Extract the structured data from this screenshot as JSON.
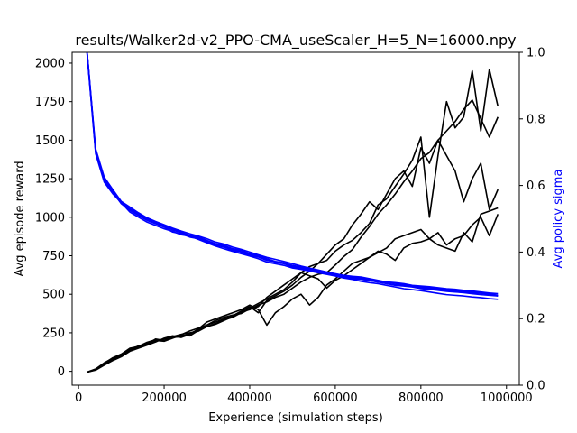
{
  "chart_data": {
    "type": "line",
    "title": "results/Walker2d-v2_PPO-CMA_useScaler_H=5_N=16000.npy",
    "xlabel": "Experience (simulation steps)",
    "ylabel": "Avg episode reward",
    "ylabel_right": "Avg policy sigma",
    "xlim": [
      -15000,
      1030000
    ],
    "ylim": [
      -90,
      2070
    ],
    "ylim_right": [
      0,
      1.0
    ],
    "xticks": [
      0,
      200000,
      400000,
      600000,
      800000,
      1000000
    ],
    "yticks": [
      0,
      250,
      500,
      750,
      1000,
      1250,
      1500,
      1750,
      2000
    ],
    "yticks_right": [
      0.0,
      0.2,
      0.4,
      0.6,
      0.8,
      1.0
    ],
    "x": [
      20000,
      40000,
      60000,
      80000,
      100000,
      120000,
      140000,
      160000,
      180000,
      200000,
      220000,
      240000,
      260000,
      280000,
      300000,
      320000,
      340000,
      360000,
      380000,
      400000,
      420000,
      440000,
      460000,
      480000,
      500000,
      520000,
      540000,
      560000,
      580000,
      600000,
      620000,
      640000,
      660000,
      680000,
      700000,
      720000,
      740000,
      760000,
      780000,
      800000,
      820000,
      840000,
      860000,
      880000,
      900000,
      920000,
      940000,
      960000,
      980000
    ],
    "reward_color": "#000000",
    "sigma_color": "#0000ff",
    "series": [
      {
        "axis": "left",
        "values": [
          -5,
          15,
          55,
          85,
          110,
          150,
          160,
          185,
          200,
          195,
          215,
          235,
          230,
          265,
          290,
          305,
          330,
          355,
          385,
          400,
          430,
          450,
          480,
          500,
          540,
          580,
          610,
          630,
          640,
          690,
          745,
          790,
          870,
          940,
          1020,
          1080,
          1150,
          1230,
          1300,
          1380,
          1420,
          1500,
          1560,
          1620,
          1700,
          1760,
          1640,
          1520,
          1650
        ]
      },
      {
        "axis": "left",
        "values": [
          -5,
          10,
          45,
          80,
          100,
          135,
          155,
          180,
          195,
          210,
          220,
          225,
          245,
          270,
          300,
          320,
          340,
          360,
          390,
          420,
          380,
          460,
          490,
          520,
          560,
          610,
          650,
          700,
          760,
          820,
          860,
          950,
          1020,
          1100,
          1050,
          1150,
          1250,
          1300,
          1200,
          1450,
          1350,
          1500,
          1400,
          1300,
          1100,
          1250,
          1350,
          1050,
          1180
        ]
      },
      {
        "axis": "left",
        "values": [
          -5,
          12,
          50,
          75,
          105,
          140,
          165,
          175,
          210,
          200,
          225,
          240,
          250,
          260,
          290,
          310,
          335,
          350,
          380,
          410,
          440,
          470,
          500,
          530,
          580,
          640,
          680,
          700,
          720,
          780,
          820,
          850,
          900,
          960,
          1080,
          1120,
          1200,
          1280,
          1370,
          1520,
          1000,
          1400,
          1750,
          1580,
          1650,
          1950,
          1560,
          1960,
          1720
        ]
      },
      {
        "axis": "left",
        "values": [
          -5,
          8,
          40,
          70,
          95,
          130,
          150,
          170,
          190,
          215,
          230,
          220,
          240,
          275,
          320,
          340,
          360,
          380,
          400,
          430,
          400,
          300,
          380,
          420,
          470,
          500,
          430,
          480,
          560,
          600,
          650,
          700,
          720,
          740,
          780,
          760,
          720,
          800,
          830,
          840,
          860,
          900,
          820,
          860,
          880,
          950,
          1000,
          880,
          1020
        ]
      },
      {
        "axis": "left",
        "values": [
          -5,
          14,
          52,
          88,
          112,
          148,
          162,
          188,
          205,
          198,
          222,
          238,
          262,
          280,
          300,
          330,
          350,
          365,
          375,
          405,
          420,
          480,
          520,
          560,
          600,
          640,
          620,
          600,
          540,
          590,
          620,
          660,
          700,
          740,
          770,
          800,
          860,
          880,
          900,
          920,
          860,
          820,
          800,
          780,
          900,
          840,
          1020,
          1040,
          1060
        ]
      },
      {
        "axis": "right",
        "values": [
          1.0,
          0.7,
          0.615,
          0.58,
          0.545,
          0.525,
          0.51,
          0.495,
          0.485,
          0.475,
          0.46,
          0.455,
          0.445,
          0.44,
          0.43,
          0.42,
          0.415,
          0.405,
          0.4,
          0.39,
          0.385,
          0.375,
          0.37,
          0.365,
          0.355,
          0.35,
          0.345,
          0.34,
          0.335,
          0.33,
          0.325,
          0.32,
          0.318,
          0.315,
          0.31,
          0.305,
          0.3,
          0.298,
          0.295,
          0.29,
          0.288,
          0.285,
          0.282,
          0.28,
          0.278,
          0.275,
          0.272,
          0.27,
          0.268
        ]
      },
      {
        "axis": "right",
        "values": [
          1.0,
          0.705,
          0.62,
          0.585,
          0.55,
          0.53,
          0.515,
          0.5,
          0.49,
          0.48,
          0.47,
          0.46,
          0.45,
          0.445,
          0.435,
          0.425,
          0.42,
          0.41,
          0.405,
          0.395,
          0.39,
          0.38,
          0.372,
          0.368,
          0.36,
          0.355,
          0.35,
          0.345,
          0.34,
          0.335,
          0.33,
          0.327,
          0.325,
          0.32,
          0.315,
          0.31,
          0.308,
          0.305,
          0.3,
          0.298,
          0.296,
          0.293,
          0.29,
          0.288,
          0.285,
          0.283,
          0.28,
          0.277,
          0.275
        ]
      },
      {
        "axis": "right",
        "values": [
          0.995,
          0.695,
          0.61,
          0.575,
          0.548,
          0.52,
          0.505,
          0.49,
          0.48,
          0.47,
          0.462,
          0.452,
          0.448,
          0.438,
          0.428,
          0.418,
          0.41,
          0.402,
          0.395,
          0.388,
          0.38,
          0.37,
          0.365,
          0.36,
          0.352,
          0.348,
          0.343,
          0.338,
          0.333,
          0.328,
          0.322,
          0.318,
          0.312,
          0.308,
          0.305,
          0.3,
          0.295,
          0.29,
          0.287,
          0.284,
          0.28,
          0.276,
          0.272,
          0.27,
          0.268,
          0.265,
          0.263,
          0.26,
          0.258
        ]
      },
      {
        "axis": "right",
        "values": [
          1.0,
          0.71,
          0.625,
          0.588,
          0.552,
          0.535,
          0.518,
          0.503,
          0.492,
          0.482,
          0.472,
          0.463,
          0.455,
          0.448,
          0.44,
          0.43,
          0.424,
          0.415,
          0.408,
          0.4,
          0.392,
          0.384,
          0.378,
          0.372,
          0.365,
          0.358,
          0.352,
          0.346,
          0.34,
          0.334,
          0.33,
          0.326,
          0.322,
          0.317,
          0.313,
          0.31,
          0.306,
          0.302,
          0.299,
          0.296,
          0.293,
          0.29,
          0.288,
          0.285,
          0.283,
          0.28,
          0.278,
          0.275,
          0.27
        ]
      },
      {
        "axis": "right",
        "values": [
          0.998,
          0.7,
          0.612,
          0.58,
          0.546,
          0.528,
          0.512,
          0.497,
          0.487,
          0.477,
          0.466,
          0.458,
          0.449,
          0.442,
          0.433,
          0.424,
          0.416,
          0.408,
          0.401,
          0.393,
          0.386,
          0.377,
          0.371,
          0.366,
          0.358,
          0.352,
          0.347,
          0.342,
          0.337,
          0.332,
          0.327,
          0.323,
          0.319,
          0.314,
          0.31,
          0.306,
          0.302,
          0.299,
          0.296,
          0.293,
          0.29,
          0.287,
          0.285,
          0.283,
          0.28,
          0.278,
          0.276,
          0.273,
          0.268
        ]
      }
    ]
  }
}
